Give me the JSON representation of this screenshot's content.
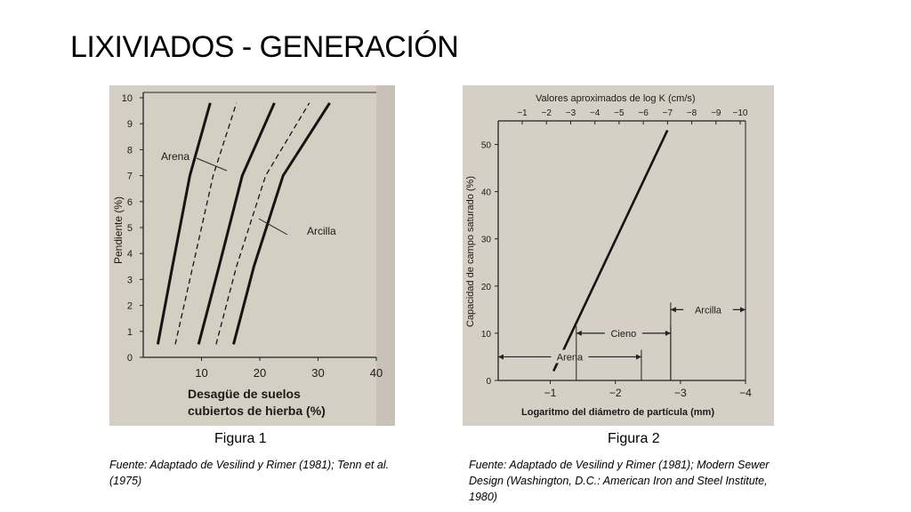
{
  "slide": {
    "title": "LIXIVIADOS - GENERACIÓN"
  },
  "figure1": {
    "caption": "Figura 1",
    "source": "Fuente: Adaptado de Vesilind y Rimer (1981); Tenn et al. (1975)",
    "chart_data": {
      "type": "line",
      "ylabel": "Pendiente (%)",
      "xlabel_line1": "Desagüe de suelos",
      "xlabel_line2": "cubiertos de hierba (%)",
      "xticks": [
        "10",
        "20",
        "30",
        "40"
      ],
      "yticks": [
        "0",
        "1",
        "2",
        "3",
        "4",
        "5",
        "6",
        "7",
        "8",
        "9",
        "10"
      ],
      "xlim": [
        0,
        40
      ],
      "ylim": [
        0,
        10
      ],
      "annotations": [
        "Arena",
        "Arcilla"
      ],
      "series": [
        {
          "style": "solid",
          "x": [
            2.5,
            5,
            8,
            11.5
          ],
          "y": [
            0.5,
            3.5,
            7,
            9.8
          ]
        },
        {
          "style": "dashed",
          "x": [
            5.5,
            8.5,
            12,
            16
          ],
          "y": [
            0.5,
            3.5,
            7,
            9.8
          ]
        },
        {
          "style": "solid",
          "x": [
            9.5,
            13,
            17,
            22.5
          ],
          "y": [
            0.5,
            3.5,
            7,
            9.8
          ]
        },
        {
          "style": "dashed",
          "x": [
            12.5,
            16,
            21,
            28.5
          ],
          "y": [
            0.5,
            3.5,
            7,
            9.8
          ]
        },
        {
          "style": "solid",
          "x": [
            15.5,
            19,
            24,
            32
          ],
          "y": [
            0.5,
            3.5,
            7,
            9.8
          ]
        }
      ]
    }
  },
  "figure2": {
    "caption": "Figura 2",
    "source": "Fuente: Adaptado de Vesilind y Rimer (1981); Modern Sewer Design (Washington, D.C.: American Iron and Steel Institute, 1980)",
    "chart_data": {
      "type": "line",
      "top_axis_label": "Valores aproximados de log K (cm/s)",
      "top_ticks": [
        "−1",
        "−2",
        "−3",
        "−4",
        "−5",
        "−6",
        "−7",
        "−8",
        "−9",
        "−10"
      ],
      "ylabel": "Capacidad de campo saturado (%)",
      "xlabel": "Logaritmo del diámetro de partícula (mm)",
      "xticks": [
        "−1",
        "−2",
        "−3",
        "−4"
      ],
      "yticks": [
        "0",
        "10",
        "20",
        "30",
        "40",
        "50"
      ],
      "xlim": [
        -0.2,
        -4
      ],
      "ylim": [
        0,
        55
      ],
      "series": [
        {
          "x": [
            -1.05,
            -2.8
          ],
          "y": [
            2,
            53
          ]
        }
      ],
      "ranges": [
        {
          "label": "Arena",
          "from": -0.2,
          "to": -2.4,
          "y": 5
        },
        {
          "label": "Cieno",
          "from": -1.4,
          "to": -2.85,
          "y": 10
        },
        {
          "label": "Arcilla",
          "from": -2.85,
          "to": -4,
          "y": 15
        }
      ]
    }
  }
}
